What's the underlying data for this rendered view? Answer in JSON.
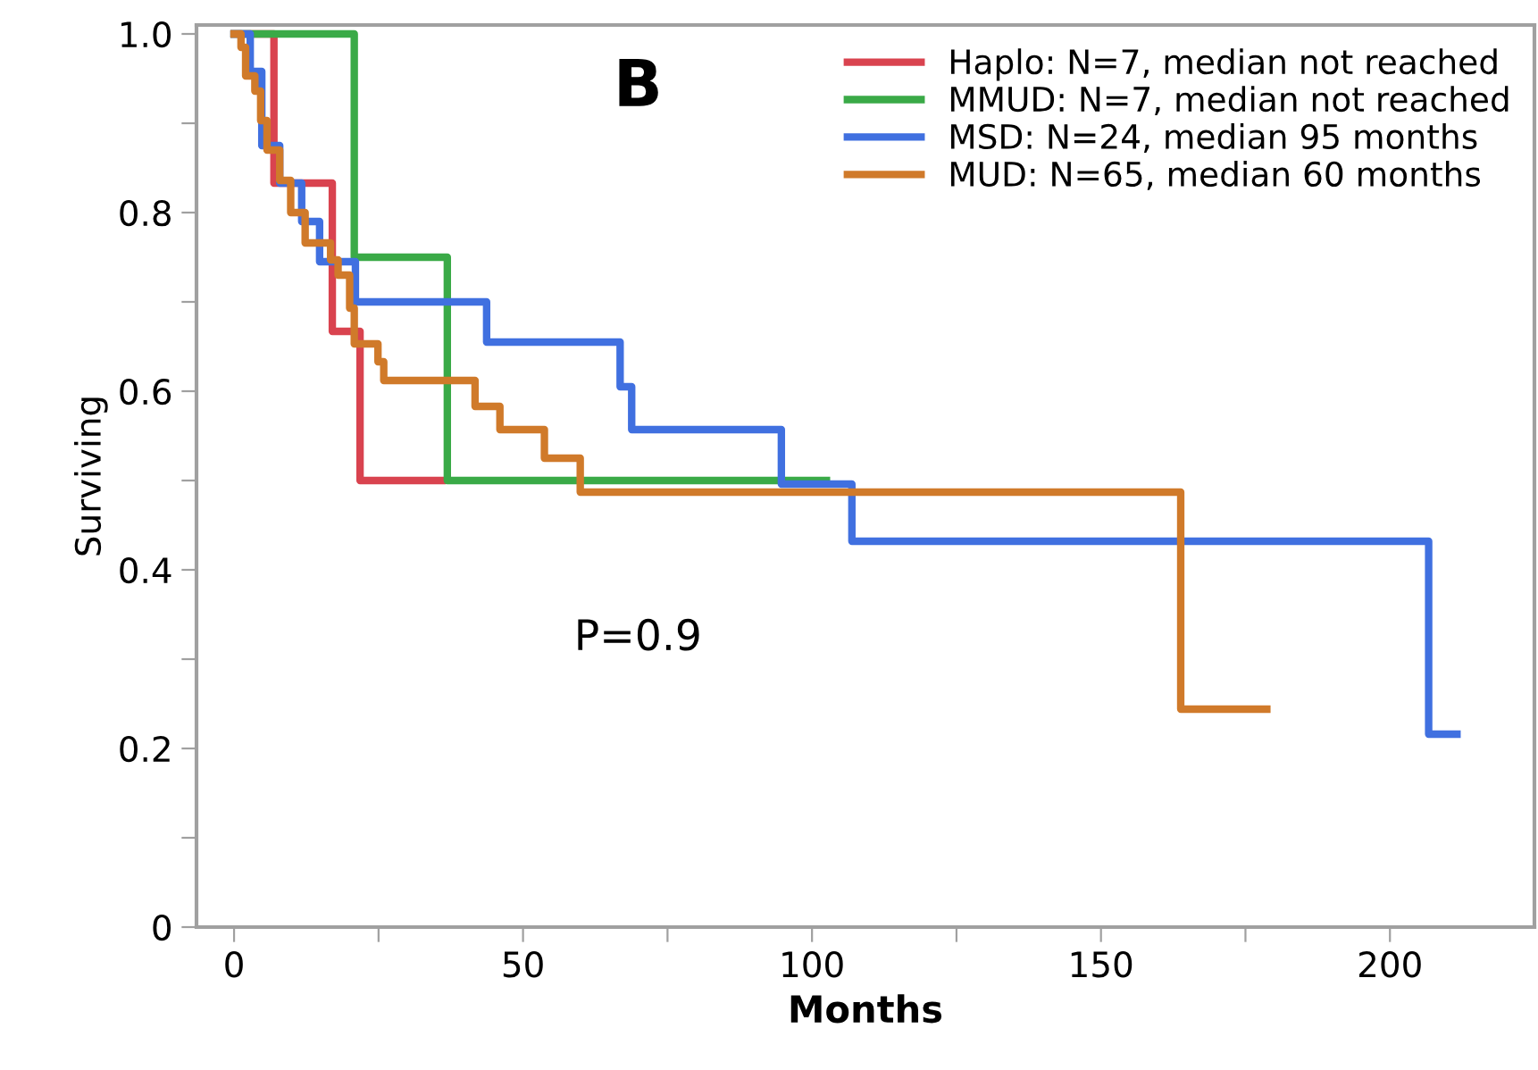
{
  "chart_data": {
    "type": "step",
    "xlabel": "Months",
    "ylabel": "Surviving",
    "annotations": [
      "B",
      "P=0.9"
    ],
    "xlim": [
      -6.5,
      225
    ],
    "ylim": [
      0,
      1.01
    ],
    "xticks": [
      0,
      {
        "value": 25,
        "label": null
      },
      50,
      {
        "value": 75,
        "label": null
      },
      100,
      {
        "value": 125,
        "label": null
      },
      150,
      {
        "value": 175,
        "label": null
      },
      200
    ],
    "yticks": [
      0,
      {
        "value": 0.1,
        "label": null
      },
      0.2,
      {
        "value": 0.3,
        "label": null
      },
      0.4,
      {
        "value": 0.5,
        "label": null
      },
      0.6,
      {
        "value": 0.7,
        "label": null
      },
      0.8,
      {
        "value": 0.9,
        "label": null
      },
      {
        "value": 1,
        "label": "1.0"
      }
    ],
    "grid": false,
    "legend": "top right",
    "marker": "none",
    "line_style": "solid",
    "series": [
      {
        "name": "Haplo: N=7, median not reached",
        "color": "#d9434f",
        "x": [
          0,
          6.9,
          17,
          21.8,
          36
        ],
        "values": [
          1.0,
          0.833,
          0.667,
          0.5,
          0.5
        ]
      },
      {
        "name": "MMUD: N=7, median not reached",
        "color": "#3aaa47",
        "x": [
          0,
          20.8,
          36.9,
          102.5
        ],
        "values": [
          1.0,
          0.75,
          0.5,
          0.5
        ]
      },
      {
        "name": "MSD: N=24, median 95 months",
        "color": "#4070e0",
        "x": [
          0,
          2.8,
          4.8,
          7.9,
          11.7,
          14.8,
          21,
          43.7,
          66.8,
          68.8,
          94.7,
          106.9,
          206.7,
          211.6
        ],
        "values": [
          1.0,
          0.958,
          0.875,
          0.833,
          0.79,
          0.745,
          0.7,
          0.655,
          0.605,
          0.557,
          0.496,
          0.432,
          0.216,
          0.216
        ]
      },
      {
        "name": "MUD: N=65, median 60 months",
        "color": "#d07a2a",
        "x": [
          0,
          1.2,
          2,
          3.6,
          4.6,
          5.7,
          7.9,
          9.8,
          12.3,
          16.7,
          18,
          20,
          20.8,
          24.9,
          25.9,
          41.7,
          46,
          53.7,
          59.9,
          163.8,
          178.7
        ],
        "values": [
          1.0,
          0.985,
          0.953,
          0.936,
          0.903,
          0.87,
          0.836,
          0.8,
          0.766,
          0.747,
          0.73,
          0.693,
          0.653,
          0.633,
          0.612,
          0.583,
          0.557,
          0.525,
          0.487,
          0.244,
          0.244
        ]
      }
    ]
  }
}
